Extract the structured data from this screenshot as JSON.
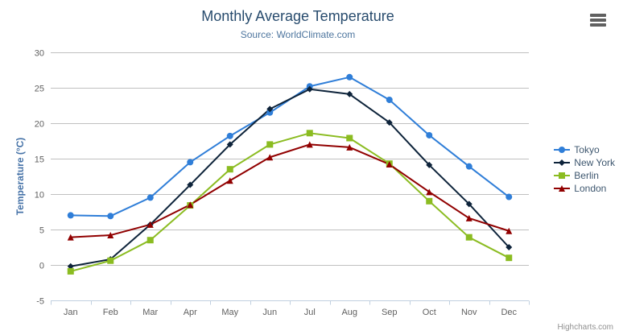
{
  "credits": "Highcharts.com",
  "colors": {
    "background": "#ffffff",
    "title": "#274b6d",
    "subtitle": "#4d759e",
    "axis_title": "#4572a7",
    "tick_label": "#606060",
    "grid_line": "#c0c0c0",
    "axis_line": "#c0d0e0",
    "legend_text": "#3e576f",
    "credits_text": "#909090",
    "export_icon": "#606060"
  },
  "chart_data": {
    "type": "line",
    "title": "Monthly Average Temperature",
    "subtitle": "Source: WorldClimate.com",
    "xlabel": "",
    "ylabel": "Temperature (°C)",
    "categories": [
      "Jan",
      "Feb",
      "Mar",
      "Apr",
      "May",
      "Jun",
      "Jul",
      "Aug",
      "Sep",
      "Oct",
      "Nov",
      "Dec"
    ],
    "ylim": [
      -5,
      30
    ],
    "ytick_step": 5,
    "grid": true,
    "legend_position": "right",
    "series": [
      {
        "name": "Tokyo",
        "color": "#2f7ed8",
        "marker": "circle",
        "values": [
          7.0,
          6.9,
          9.5,
          14.5,
          18.2,
          21.5,
          25.2,
          26.5,
          23.3,
          18.3,
          13.9,
          9.6
        ]
      },
      {
        "name": "New York",
        "color": "#0d233a",
        "marker": "diamond",
        "values": [
          -0.2,
          0.8,
          5.7,
          11.3,
          17.0,
          22.0,
          24.8,
          24.1,
          20.1,
          14.1,
          8.6,
          2.5
        ]
      },
      {
        "name": "Berlin",
        "color": "#8bbc21",
        "marker": "square",
        "values": [
          -0.9,
          0.6,
          3.5,
          8.4,
          13.5,
          17.0,
          18.6,
          17.9,
          14.3,
          9.0,
          3.9,
          1.0
        ]
      },
      {
        "name": "London",
        "color": "#910000",
        "marker": "triangle",
        "values": [
          3.9,
          4.2,
          5.7,
          8.5,
          11.9,
          15.2,
          17.0,
          16.6,
          14.2,
          10.3,
          6.6,
          4.8
        ]
      }
    ]
  }
}
